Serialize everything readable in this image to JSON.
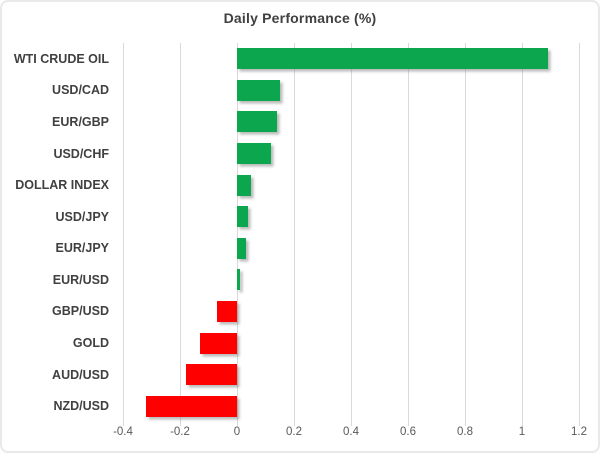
{
  "chart": {
    "title": "Daily Performance (%)"
  },
  "chart_data": {
    "type": "bar",
    "orientation": "horizontal",
    "title": "Daily Performance (%)",
    "categories": [
      "WTI CRUDE OIL",
      "USD/CAD",
      "EUR/GBP",
      "USD/CHF",
      "DOLLAR INDEX",
      "USD/JPY",
      "EUR/JPY",
      "EUR/USD",
      "GBP/USD",
      "GOLD",
      "AUD/USD",
      "NZD/USD"
    ],
    "values": [
      1.09,
      0.15,
      0.14,
      0.12,
      0.05,
      0.04,
      0.03,
      0.01,
      -0.07,
      -0.13,
      -0.18,
      -0.32
    ],
    "xlabel": "",
    "ylabel": "",
    "xlim": [
      -0.4,
      1.2
    ],
    "x_tick_labels": [
      "-0.4",
      "-0.2",
      "0",
      "0.2",
      "0.4",
      "0.6",
      "0.8",
      "1",
      "1.2"
    ],
    "x_tick_values": [
      -0.4,
      -0.2,
      0,
      0.2,
      0.4,
      0.6,
      0.8,
      1,
      1.2
    ],
    "grid": true,
    "legend": false,
    "colors": {
      "positive": "#0BA64D",
      "negative": "#FE0000",
      "gridline": "#D9D9D9",
      "title_text": "#404040",
      "category_text": "#404040",
      "tick_text": "#595959",
      "border": "#E9E9E9",
      "background": "#FFFFFF"
    }
  }
}
